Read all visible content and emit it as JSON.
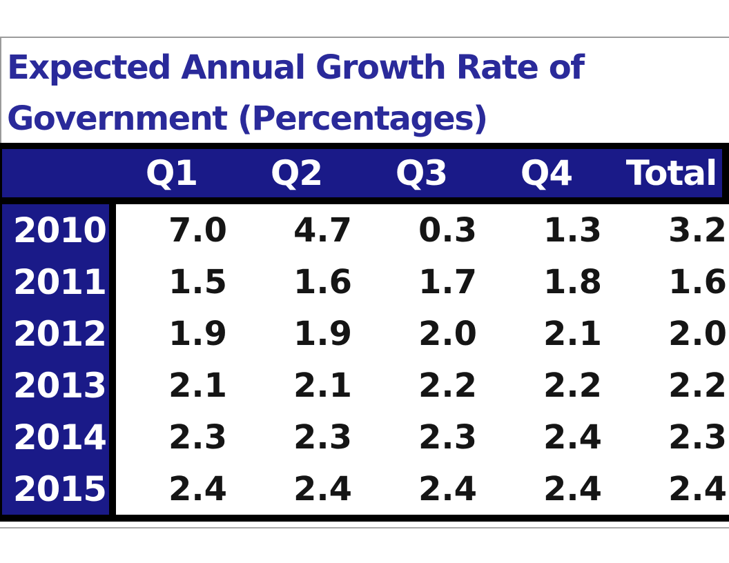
{
  "title": {
    "line1": "Expected Annual Growth Rate of",
    "line2": "Government (Percentages)"
  },
  "table": {
    "header": {
      "cols": [
        "Q1",
        "Q2",
        "Q3",
        "Q4",
        "Total"
      ]
    },
    "rows": [
      {
        "year": "2010",
        "values": [
          "7.0",
          "4.7",
          "0.3",
          "1.3",
          "3.2"
        ]
      },
      {
        "year": "2011",
        "values": [
          "1.5",
          "1.6",
          "1.7",
          "1.8",
          "1.6"
        ]
      },
      {
        "year": "2012",
        "values": [
          "1.9",
          "1.9",
          "2.0",
          "2.1",
          "2.0"
        ]
      },
      {
        "year": "2013",
        "values": [
          "2.1",
          "2.1",
          "2.2",
          "2.2",
          "2.2"
        ]
      },
      {
        "year": "2014",
        "values": [
          "2.3",
          "2.3",
          "2.3",
          "2.4",
          "2.3"
        ]
      },
      {
        "year": "2015",
        "values": [
          "2.4",
          "2.4",
          "2.4",
          "2.4",
          "2.4"
        ]
      }
    ]
  },
  "chart_data": {
    "type": "table",
    "title": "Expected Annual Growth Rate of Government (Percentages)",
    "columns": [
      "",
      "Q1",
      "Q2",
      "Q3",
      "Q4",
      "Total"
    ],
    "rows": [
      [
        "2010",
        7.0,
        4.7,
        0.3,
        1.3,
        3.2
      ],
      [
        "2011",
        1.5,
        1.6,
        1.7,
        1.8,
        1.6
      ],
      [
        "2012",
        1.9,
        1.9,
        2.0,
        2.1,
        2.0
      ],
      [
        "2013",
        2.1,
        2.1,
        2.2,
        2.2,
        2.2
      ],
      [
        "2014",
        2.3,
        2.3,
        2.3,
        2.4,
        2.3
      ],
      [
        "2015",
        2.4,
        2.4,
        2.4,
        2.4,
        2.4
      ]
    ],
    "units": "percent"
  },
  "colors": {
    "header_bg": "#1a1a88",
    "title_text": "#2a2a9a",
    "rule_black": "#000000",
    "grid_gray": "#9b9b9b",
    "value_text": "#151515",
    "header_text": "#ffffff"
  }
}
